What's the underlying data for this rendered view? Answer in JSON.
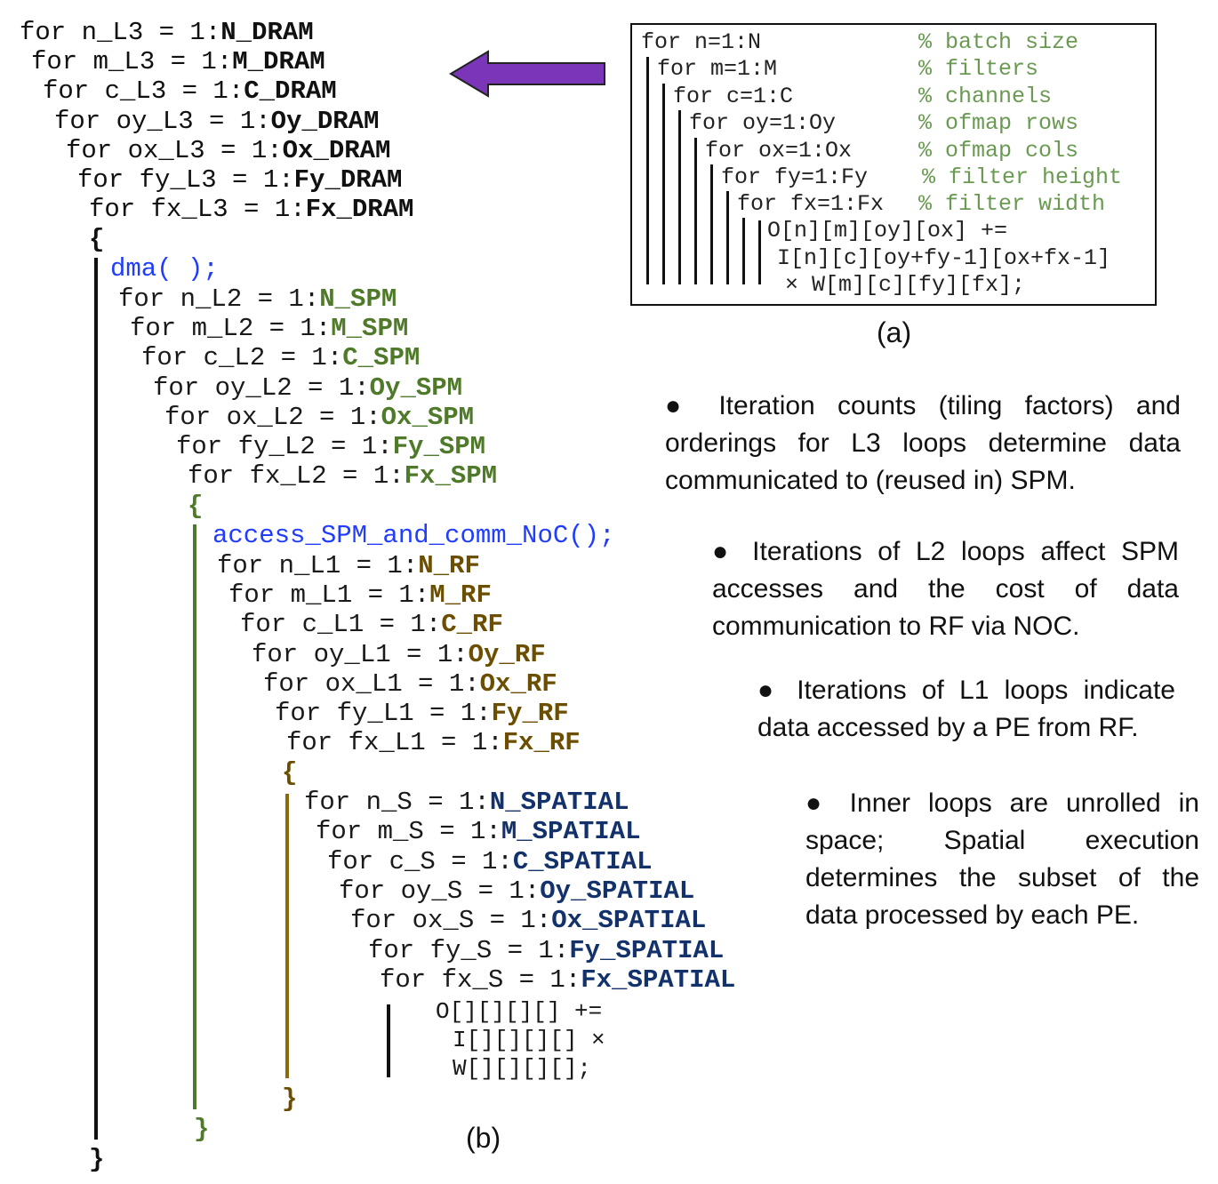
{
  "part_b": {
    "l3": [
      {
        "pre": "for n_L3 = 1:",
        "bound": "N_DRAM"
      },
      {
        "pre": "for m_L3 = 1:",
        "bound": "M_DRAM"
      },
      {
        "pre": "for c_L3 = 1:",
        "bound": "C_DRAM"
      },
      {
        "pre": "for oy_L3 = 1:",
        "bound": "Oy_DRAM"
      },
      {
        "pre": "for ox_L3 = 1:",
        "bound": "Ox_DRAM"
      },
      {
        "pre": "for fy_L3 = 1:",
        "bound": "Fy_DRAM"
      },
      {
        "pre": "for fx_L3 = 1:",
        "bound": "Fx_DRAM"
      }
    ],
    "open_brace": "{",
    "close_brace": "}",
    "dma_call": "dma( );",
    "l2": [
      {
        "pre": "for n_L2 = 1:",
        "bound": "N_SPM"
      },
      {
        "pre": "for m_L2 = 1:",
        "bound": "M_SPM"
      },
      {
        "pre": "for c_L2 = 1:",
        "bound": "C_SPM"
      },
      {
        "pre": "for oy_L2 = 1:",
        "bound": "Oy_SPM"
      },
      {
        "pre": "for ox_L2 = 1:",
        "bound": "Ox_SPM"
      },
      {
        "pre": "for fy_L2 = 1:",
        "bound": "Fy_SPM"
      },
      {
        "pre": "for fx_L2 = 1:",
        "bound": "Fx_SPM"
      }
    ],
    "access_call": "access_SPM_and_comm_NoC();",
    "l1": [
      {
        "pre": "for n_L1 = 1:",
        "bound": "N_RF"
      },
      {
        "pre": "for m_L1 = 1:",
        "bound": "M_RF"
      },
      {
        "pre": "for c_L1 = 1:",
        "bound": "C_RF"
      },
      {
        "pre": "for oy_L1 = 1:",
        "bound": "Oy_RF"
      },
      {
        "pre": "for ox_L1 = 1:",
        "bound": "Ox_RF"
      },
      {
        "pre": "for fy_L1 = 1:",
        "bound": "Fy_RF"
      },
      {
        "pre": "for fx_L1 = 1:",
        "bound": "Fx_RF"
      }
    ],
    "spatial": [
      {
        "pre": "for n_S = 1:",
        "bound": "N_SPATIAL"
      },
      {
        "pre": "for m_S = 1:",
        "bound": "M_SPATIAL"
      },
      {
        "pre": "for c_S = 1:",
        "bound": "C_SPATIAL"
      },
      {
        "pre": "for oy_S = 1:",
        "bound": "Oy_SPATIAL"
      },
      {
        "pre": "for ox_S = 1:",
        "bound": "Ox_SPATIAL"
      },
      {
        "pre": "for fy_S = 1:",
        "bound": "Fy_SPATIAL"
      },
      {
        "pre": "for fx_S = 1:",
        "bound": "Fx_SPATIAL"
      }
    ],
    "body": [
      "O[][][][] +=",
      "I[][][][] ×",
      "W[][][][];"
    ],
    "caption": "(b)"
  },
  "part_a": {
    "loops": [
      {
        "code": "for n=1:N",
        "comment": "% batch size"
      },
      {
        "code": "for m=1:M",
        "comment": "% filters"
      },
      {
        "code": "for c=1:C",
        "comment": "% channels"
      },
      {
        "code": "for oy=1:Oy",
        "comment": "% ofmap rows"
      },
      {
        "code": "for ox=1:Ox",
        "comment": "% ofmap cols"
      },
      {
        "code": "for fy=1:Fy",
        "comment": "% filter height"
      },
      {
        "code": "for fx=1:Fx",
        "comment": "% filter width"
      }
    ],
    "body": [
      "O[n][m][oy][ox] +=",
      "I[n][c][oy+fy-1][ox+fx-1]",
      "× W[m][c][fy][fx];"
    ],
    "caption": "(a)"
  },
  "notes": [
    "● Iteration counts (tiling factors) and orderings for L3 loops determine data communicated to (reused in) SPM.",
    "● Iterations of L2 loops affect SPM accesses and the cost of data communication to RF via NOC.",
    "● Iterations of L1 loops indicate data accessed by a PE from RF.",
    "● Inner loops are unrolled in space; Spatial execution determines the subset of the data processed by each PE."
  ],
  "colors": {
    "l3": "#111111",
    "l2": "#4f7a2a",
    "l1": "#6b4e00",
    "spatial": "#13326b",
    "call": "#1f3cff",
    "arrow": "#7a35b8",
    "comment": "#6a9a52"
  }
}
